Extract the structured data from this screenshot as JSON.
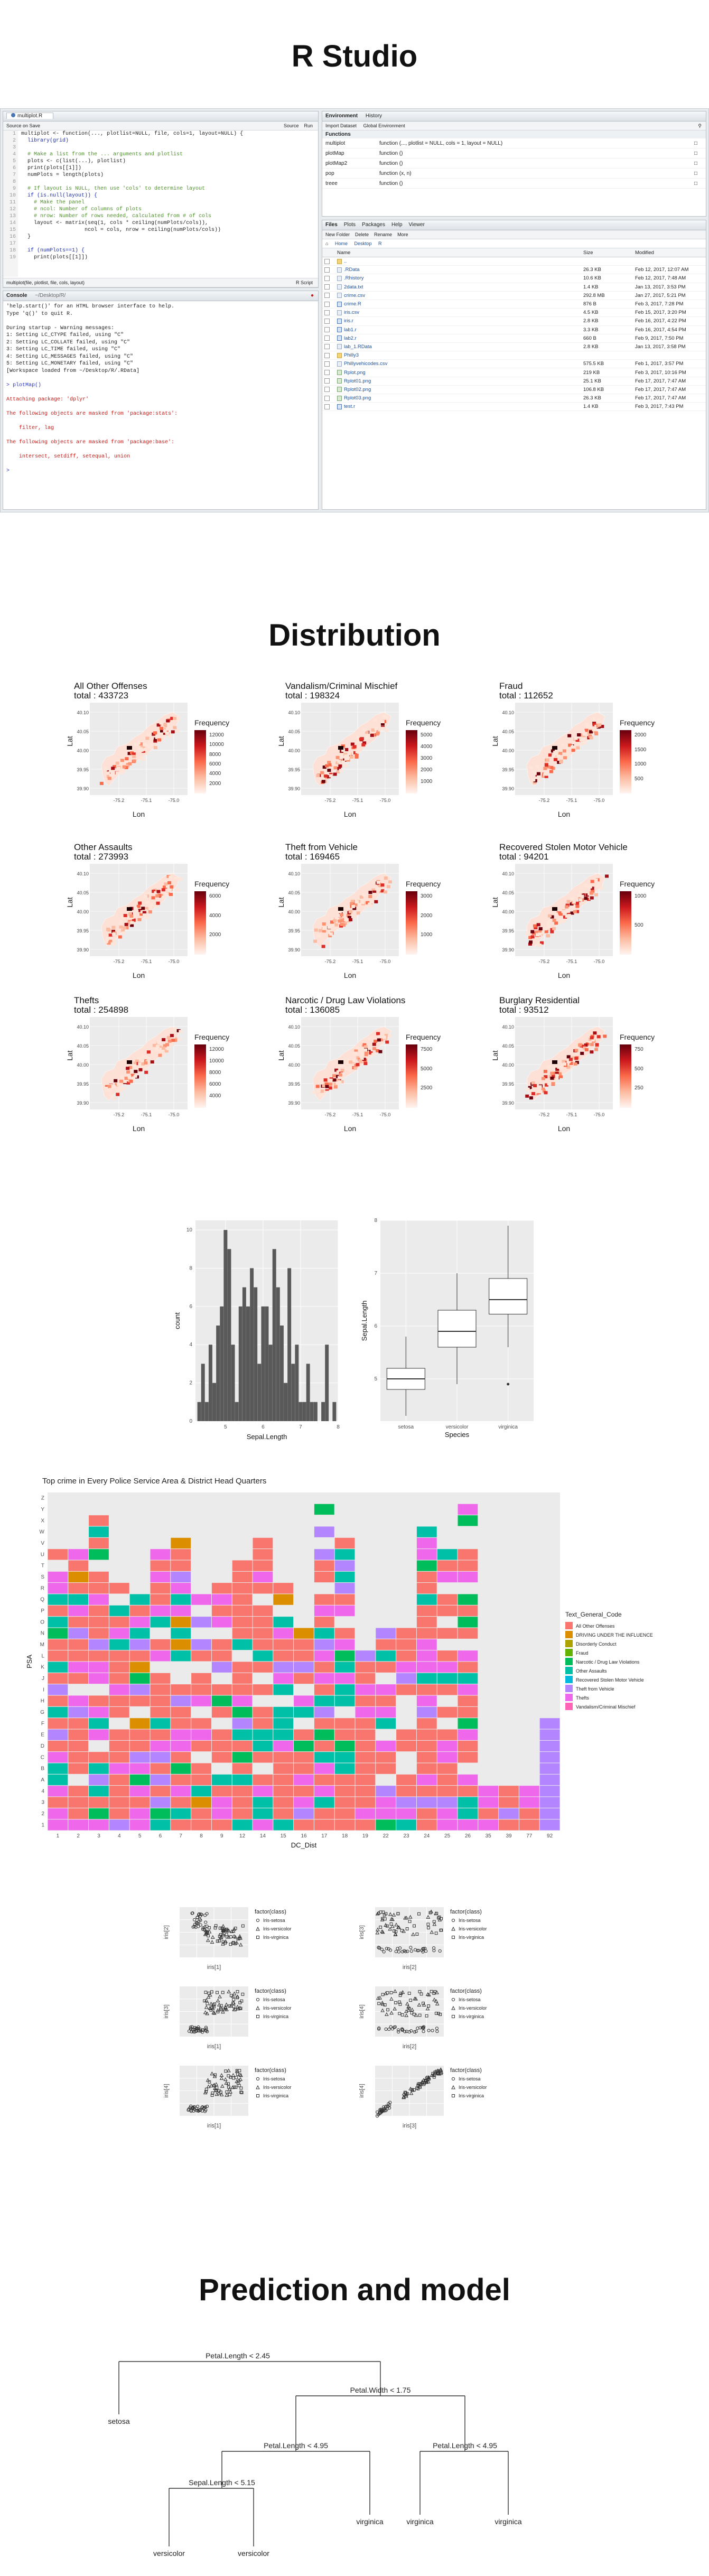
{
  "sections": {
    "rstudio": "R Studio",
    "distribution": "Distribution",
    "prediction": "Prediction and model"
  },
  "rstudio": {
    "editor_tab": "multiplot.R",
    "editor_toolbar": [
      "Source on Save",
      "Run",
      "Source"
    ],
    "code_lines": [
      "multiplot <- function(..., plotlist=NULL, file, cols=1, layout=NULL) {",
      "  library(grid)",
      "",
      "  # Make a list from the ... arguments and plotlist",
      "  plots <- c(list(...), plotlist)",
      "  print(plots[[1]])",
      "  numPlots = length(plots)",
      "",
      "  # If layout is NULL, then use 'cols' to determine layout",
      "  if (is.null(layout)) {",
      "    # Make the panel",
      "    # ncol: Number of columns of plots",
      "    # nrow: Number of rows needed, calculated from # of cols",
      "    layout <- matrix(seq(1, cols * ceiling(numPlots/cols)),",
      "                    ncol = cols, nrow = ceiling(numPlots/cols))",
      "  }",
      "",
      "  if (numPlots==1) {",
      "    print(plots[[1]])"
    ],
    "editor_status": "multiplot(file, plotlist, file, cols, layout)",
    "editor_status_right": "R Script",
    "console_tab": "Console",
    "console_path": "~/Desktop/R/",
    "console_lines": [
      {
        "t": "'help.start()' for an HTML browser interface to help.",
        "c": "#222"
      },
      {
        "t": "Type 'q()' to quit R.",
        "c": "#222"
      },
      {
        "t": "",
        "c": "#222"
      },
      {
        "t": "During startup - Warning messages:",
        "c": "#222"
      },
      {
        "t": "1: Setting LC_CTYPE failed, using \"C\"",
        "c": "#222"
      },
      {
        "t": "2: Setting LC_COLLATE failed, using \"C\"",
        "c": "#222"
      },
      {
        "t": "3: Setting LC_TIME failed, using \"C\"",
        "c": "#222"
      },
      {
        "t": "4: Setting LC_MESSAGES failed, using \"C\"",
        "c": "#222"
      },
      {
        "t": "5: Setting LC_MONETARY failed, using \"C\"",
        "c": "#222"
      },
      {
        "t": "[Workspace loaded from ~/Desktop/R/.RData]",
        "c": "#222"
      },
      {
        "t": "",
        "c": "#222"
      },
      {
        "t": "> plotMap()",
        "c": "#2a36c2"
      },
      {
        "t": "",
        "c": "#222"
      },
      {
        "t": "Attaching package: 'dplyr'",
        "c": "#c41a16"
      },
      {
        "t": "",
        "c": "#222"
      },
      {
        "t": "The following objects are masked from 'package:stats':",
        "c": "#c41a16"
      },
      {
        "t": "",
        "c": "#222"
      },
      {
        "t": "    filter, lag",
        "c": "#c41a16"
      },
      {
        "t": "",
        "c": "#222"
      },
      {
        "t": "The following objects are masked from 'package:base':",
        "c": "#c41a16"
      },
      {
        "t": "",
        "c": "#222"
      },
      {
        "t": "    intersect, setdiff, setequal, union",
        "c": "#c41a16"
      },
      {
        "t": "",
        "c": "#222"
      },
      {
        "t": ">",
        "c": "#2a36c2"
      }
    ],
    "env_tabs": [
      "Environment",
      "History"
    ],
    "env_toolbar": [
      "Import Dataset",
      "Global Environment"
    ],
    "env_heading": "Functions",
    "env_rows": [
      {
        "name": "multiplot",
        "value": "function (..., plotlist = NULL, cols = 1, layout = NULL)"
      },
      {
        "name": "plotMap",
        "value": "function ()"
      },
      {
        "name": "plotMap2",
        "value": "function ()"
      },
      {
        "name": "pop",
        "value": "function (x, n)"
      },
      {
        "name": "treee",
        "value": "function ()"
      }
    ],
    "files_tabs": [
      "Files",
      "Plots",
      "Packages",
      "Help",
      "Viewer"
    ],
    "files_toolbar": [
      "New Folder",
      "Delete",
      "Rename",
      "More"
    ],
    "files_path": [
      "Home",
      "Desktop",
      "R"
    ],
    "files_headers": [
      "Name",
      "Size",
      "Modified"
    ],
    "files": [
      {
        "name": "..",
        "size": "",
        "mod": "",
        "kind": "folder"
      },
      {
        "name": ".RData",
        "size": "26.3 KB",
        "mod": "Feb 12, 2017, 12:07 AM",
        "kind": "file"
      },
      {
        "name": ".Rhistory",
        "size": "10.6 KB",
        "mod": "Feb 12, 2017, 7:48 AM",
        "kind": "file"
      },
      {
        "name": "2data.txt",
        "size": "1.4 KB",
        "mod": "Jan 13, 2017, 3:53 PM",
        "kind": "file"
      },
      {
        "name": "crime.csv",
        "size": "292.8 MB",
        "mod": "Jan 27, 2017, 5:21 PM",
        "kind": "file"
      },
      {
        "name": "crime.R",
        "size": "876 B",
        "mod": "Feb 3, 2017, 7:28 PM",
        "kind": "r"
      },
      {
        "name": "iris.csv",
        "size": "4.5 KB",
        "mod": "Feb 15, 2017, 3:20 PM",
        "kind": "file"
      },
      {
        "name": "iris.r",
        "size": "2.8 KB",
        "mod": "Feb 16, 2017, 4:22 PM",
        "kind": "r"
      },
      {
        "name": "lab1.r",
        "size": "3.3 KB",
        "mod": "Feb 16, 2017, 4:54 PM",
        "kind": "r"
      },
      {
        "name": "lab2.r",
        "size": "660 B",
        "mod": "Feb 9, 2017, 7:50 PM",
        "kind": "r"
      },
      {
        "name": "lab_1.RData",
        "size": "2.8 KB",
        "mod": "Jan 13, 2017, 3:58 PM",
        "kind": "file"
      },
      {
        "name": "Philly3",
        "size": "",
        "mod": "",
        "kind": "folder"
      },
      {
        "name": "Phillyvehicodes.csv",
        "size": "575.5 KB",
        "mod": "Feb 1, 2017, 3:57 PM",
        "kind": "file"
      },
      {
        "name": "Rplot.png",
        "size": "219 KB",
        "mod": "Feb 3, 2017, 10:16 PM",
        "kind": "img"
      },
      {
        "name": "Rplot01.png",
        "size": "25.1 KB",
        "mod": "Feb 17, 2017, 7:47 AM",
        "kind": "img"
      },
      {
        "name": "Rplot02.png",
        "size": "106.8 KB",
        "mod": "Feb 17, 2017, 7:47 AM",
        "kind": "img"
      },
      {
        "name": "Rplot03.png",
        "size": "26.3 KB",
        "mod": "Feb 17, 2017, 7:47 AM",
        "kind": "img"
      },
      {
        "name": "test.r",
        "size": "1.4 KB",
        "mod": "Feb 3, 2017, 7:43 PM",
        "kind": "r"
      }
    ]
  },
  "maps": {
    "xlabel": "Lon",
    "ylabel": "Lat",
    "legend_title": "Frequency",
    "y_ticks": [
      "40.10",
      "40.05",
      "40.00",
      "39.95",
      "39.90"
    ],
    "x_ticks": [
      "-75.2",
      "-75.1",
      "-75.0"
    ],
    "panels": [
      {
        "title": "All Other Offenses",
        "total": "total :  433723",
        "legend": [
          "12000",
          "10000",
          "8000",
          "6000",
          "4000",
          "2000"
        ]
      },
      {
        "title": "Vandalism/Criminal Mischief",
        "total": "total :  198324",
        "legend": [
          "5000",
          "4000",
          "3000",
          "2000",
          "1000"
        ]
      },
      {
        "title": "Fraud",
        "total": "total :  112652",
        "legend": [
          "2000",
          "1500",
          "1000",
          "500"
        ]
      },
      {
        "title": "Other Assaults",
        "total": "total :  273993",
        "legend": [
          "6000",
          "4000",
          "2000"
        ]
      },
      {
        "title": "Theft from Vehicle",
        "total": "total :  169465",
        "legend": [
          "3000",
          "2000",
          "1000"
        ]
      },
      {
        "title": "Recovered Stolen Motor Vehicle",
        "total": "total :  94201",
        "legend": [
          "1000",
          "500"
        ]
      },
      {
        "title": "Thefts",
        "total": "total :  254898",
        "legend": [
          "12000",
          "10000",
          "8000",
          "6000",
          "4000"
        ]
      },
      {
        "title": "Narcotic / Drug Law Violations",
        "total": "total :  136085",
        "legend": [
          "7500",
          "5000",
          "2500"
        ]
      },
      {
        "title": "Burglary Residential",
        "total": "total :  93512",
        "legend": [
          "750",
          "500",
          "250"
        ]
      }
    ]
  },
  "chart_data": [
    {
      "type": "bar",
      "xlabel": "Sepal.Length",
      "ylabel": "count",
      "x": [
        4.3,
        4.4,
        4.5,
        4.6,
        4.7,
        4.8,
        4.9,
        5.0,
        5.1,
        5.2,
        5.3,
        5.4,
        5.5,
        5.6,
        5.7,
        5.8,
        5.9,
        6.0,
        6.1,
        6.2,
        6.3,
        6.4,
        6.5,
        6.6,
        6.7,
        6.8,
        6.9,
        7.0,
        7.1,
        7.2,
        7.3,
        7.4,
        7.6,
        7.7,
        7.9
      ],
      "values": [
        1,
        3,
        1,
        4,
        2,
        5,
        6,
        10,
        9,
        4,
        1,
        6,
        7,
        6,
        8,
        7,
        3,
        6,
        6,
        4,
        9,
        7,
        5,
        2,
        8,
        3,
        4,
        1,
        1,
        3,
        1,
        1,
        1,
        4,
        1
      ],
      "xticks": [
        "5",
        "6",
        "7",
        "8"
      ],
      "yticks": [
        "0",
        "2",
        "4",
        "6",
        "8",
        "10"
      ],
      "ylim": [
        0,
        10.5
      ]
    },
    {
      "type": "box",
      "xlabel": "Species",
      "ylabel": "Sepal.Length",
      "categories": [
        "setosa",
        "versicolor",
        "virginica"
      ],
      "boxes": [
        {
          "min": 4.3,
          "q1": 4.8,
          "median": 5.0,
          "q3": 5.2,
          "max": 5.8,
          "outliers": []
        },
        {
          "min": 4.9,
          "q1": 5.6,
          "median": 5.9,
          "q3": 6.3,
          "max": 7.0,
          "outliers": []
        },
        {
          "min": 5.6,
          "q1": 6.225,
          "median": 6.5,
          "q3": 6.9,
          "max": 7.9,
          "outliers": [
            4.9
          ]
        }
      ],
      "yticks": [
        "5",
        "6",
        "7",
        "8"
      ],
      "ylim": [
        4.2,
        8.0
      ]
    },
    {
      "type": "heatmap",
      "title": "Top crime in Every Police Service Area & District Head Quarters",
      "xlabel": "DC_Dist",
      "ylabel": "PSA",
      "xcategories": [
        "1",
        "2",
        "3",
        "4",
        "5",
        "6",
        "7",
        "8",
        "9",
        "12",
        "14",
        "15",
        "16",
        "17",
        "18",
        "19",
        "22",
        "23",
        "24",
        "25",
        "26",
        "35",
        "39",
        "77",
        "92"
      ],
      "ycategories": [
        "1",
        "2",
        "3",
        "4",
        "A",
        "B",
        "C",
        "D",
        "E",
        "F",
        "G",
        "H",
        "I",
        "J",
        "K",
        "L",
        "M",
        "N",
        "O",
        "P",
        "Q",
        "R",
        "S",
        "T",
        "U",
        "V",
        "W",
        "X",
        "Y",
        "Z"
      ],
      "legend_title": "Text_General_Code",
      "legend": [
        {
          "name": "All Other Offenses",
          "color": "#f8766d"
        },
        {
          "name": "DRIVING UNDER THE INFLUENCE",
          "color": "#db8e00"
        },
        {
          "name": "Disorderly Conduct",
          "color": "#aea200"
        },
        {
          "name": "Fraud",
          "color": "#64b200"
        },
        {
          "name": "Narcotic / Drug Law Violations",
          "color": "#00bd5c"
        },
        {
          "name": "Other Assaults",
          "color": "#00c1a7"
        },
        {
          "name": "Recovered Stolen Motor Vehicle",
          "color": "#00badE"
        },
        {
          "name": "Theft from Vehicle",
          "color": "#b385ff"
        },
        {
          "name": "Thefts",
          "color": "#ef67eb"
        },
        {
          "name": "Vandalism/Criminal Mischief",
          "color": "#ff63b6"
        }
      ]
    },
    {
      "type": "scatter",
      "panels": [
        {
          "xlabel": "iris[1]",
          "ylabel": "iris[2]"
        },
        {
          "xlabel": "iris[2]",
          "ylabel": "iris[3]"
        },
        {
          "xlabel": "iris[1]",
          "ylabel": "iris[3]"
        },
        {
          "xlabel": "iris[2]",
          "ylabel": "iris[4]"
        },
        {
          "xlabel": "iris[1]",
          "ylabel": "iris[4]"
        },
        {
          "xlabel": "iris[3]",
          "ylabel": "iris[4]"
        }
      ],
      "legend_title": "factor(class)",
      "legend": [
        "Iris-setosa",
        "Iris-versicolor",
        "Iris-virginica"
      ]
    }
  ],
  "tree": {
    "root": "Petal.Length < 2.45",
    "n2": "Petal.Width < 1.75",
    "n3": "Petal.Length < 4.95",
    "n4": "Petal.Length < 4.95",
    "n5": "Sepal.Length < 5.15",
    "leaves": [
      "setosa",
      "versicolor",
      "versicolor",
      "virginica",
      "virginica",
      "virginica"
    ]
  }
}
